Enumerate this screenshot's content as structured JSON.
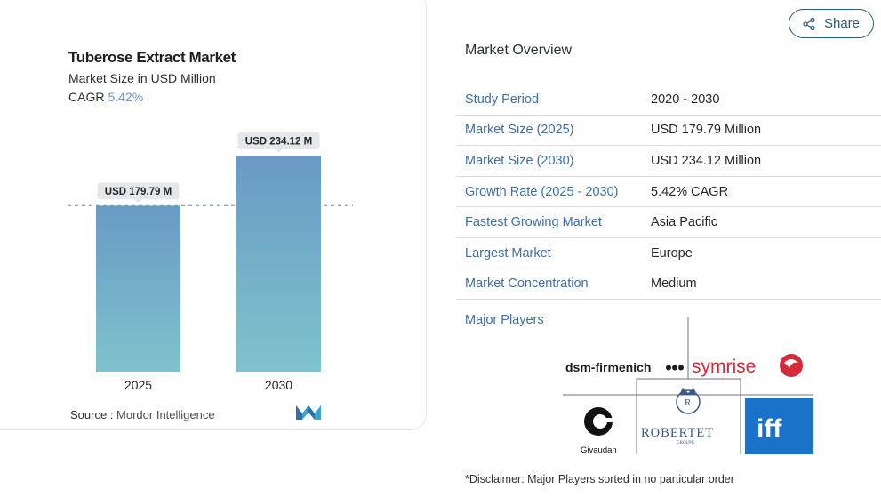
{
  "card": {
    "title": "Tuberose Extract Market",
    "subtitle": "Market Size in USD Million",
    "cagr_label": "CAGR",
    "cagr_value": "5.42%",
    "source_label": "Source :",
    "source_value": "Mordor Intelligence"
  },
  "chart_data": {
    "type": "bar",
    "categories": [
      "2025",
      "2030"
    ],
    "values": [
      179.79,
      234.12
    ],
    "data_labels": [
      "USD 179.79 M",
      "USD 234.12 M"
    ],
    "title": "Tuberose Extract Market",
    "xlabel": "",
    "ylabel": "",
    "reference_line": 179.79,
    "grid": false,
    "colors": {
      "bar_top": "#6a9ac4",
      "bar_bottom": "#7ec3cc",
      "ref_line": "#7aa6c9",
      "label_bg": "#e4e8eb"
    }
  },
  "share": {
    "label": "Share"
  },
  "overview": {
    "title": "Market Overview",
    "rows": [
      {
        "key": "Study Period",
        "value": "2020 - 2030"
      },
      {
        "key": "Market Size (2025)",
        "value": "USD 179.79 Million"
      },
      {
        "key": "Market Size (2030)",
        "value": "USD 234.12 Million"
      },
      {
        "key": "Growth Rate (2025 - 2030)",
        "value": "5.42% CAGR"
      },
      {
        "key": "Fastest Growing Market",
        "value": "Asia Pacific"
      },
      {
        "key": "Largest Market",
        "value": "Europe"
      },
      {
        "key": "Market Concentration",
        "value": "Medium"
      }
    ]
  },
  "players": {
    "title": "Major Players",
    "logos": [
      "dsm-firmenich",
      "symrise",
      "Givaudan",
      "ROBERTET",
      "iff"
    ],
    "disclaimer": "*Disclaimer: Major Players sorted in no particular order"
  },
  "icons": {
    "share": "share-icon",
    "mordor": "mordor-intelligence-logo"
  }
}
